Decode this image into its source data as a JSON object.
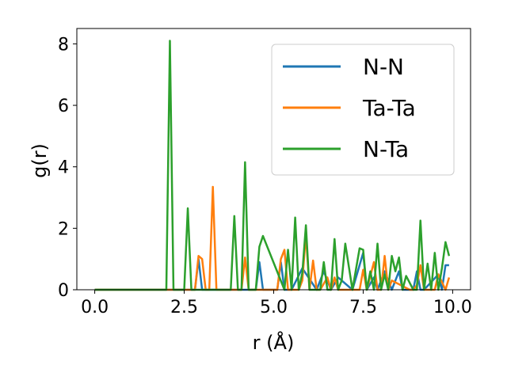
{
  "chart_data": {
    "type": "line",
    "xlabel": "r (Å)",
    "ylabel": "g(r)",
    "xlim": [
      -0.5,
      10.5
    ],
    "ylim": [
      0,
      8.5
    ],
    "xticks": [
      0.0,
      2.5,
      5.0,
      7.5,
      10.0
    ],
    "xtick_labels": [
      "0.0",
      "2.5",
      "5.0",
      "7.5",
      "10.0"
    ],
    "yticks": [
      0,
      2,
      4,
      6,
      8
    ],
    "ytick_labels": [
      "0",
      "2",
      "4",
      "6",
      "8"
    ],
    "grid": false,
    "legend_position": "top-right",
    "series": [
      {
        "name": "N-N",
        "color": "#1f77b4",
        "x": [
          0,
          2.0,
          2.8,
          2.9,
          3.0,
          4.0,
          4.1,
          4.5,
          4.6,
          4.7,
          5.1,
          5.2,
          5.3,
          5.5,
          5.8,
          6.2,
          6.4,
          6.6,
          6.8,
          7.2,
          7.4,
          7.5,
          7.6,
          7.8,
          7.9,
          8.1,
          8.3,
          8.5,
          8.6,
          8.9,
          9.0,
          9.1,
          9.2,
          9.6,
          9.7,
          9.8,
          9.9
        ],
        "y": [
          0,
          0,
          0,
          1.0,
          0,
          0,
          0,
          0,
          0.9,
          0,
          0,
          0.9,
          0,
          0,
          0.7,
          0,
          0.6,
          0,
          0.4,
          0,
          0.8,
          1.2,
          0,
          0.4,
          0,
          0.6,
          0,
          0.6,
          0,
          0,
          0.6,
          0,
          0,
          0.5,
          0,
          0.8,
          0.8
        ]
      },
      {
        "name": "Ta-Ta",
        "color": "#ff7f0e",
        "x": [
          0,
          2.6,
          2.7,
          2.8,
          2.9,
          3.0,
          3.1,
          3.2,
          3.3,
          3.4,
          4.0,
          4.1,
          4.2,
          4.3,
          5.0,
          5.1,
          5.2,
          5.3,
          5.4,
          5.7,
          5.8,
          5.9,
          6.0,
          6.1,
          6.2,
          6.3,
          6.5,
          6.6,
          6.7,
          6.8,
          7.4,
          7.5,
          7.6,
          7.8,
          7.9,
          8.0,
          8.1,
          8.2,
          8.3,
          8.8,
          8.9,
          9.0,
          9.1,
          9.2,
          9.5,
          9.6,
          9.8,
          9.9
        ],
        "y": [
          0,
          0,
          0,
          0,
          1.1,
          1.0,
          0,
          0,
          3.35,
          0,
          0,
          0,
          1.05,
          0,
          0,
          0,
          1.0,
          1.3,
          0,
          0,
          0.3,
          1.8,
          0,
          0.95,
          0,
          0,
          0.4,
          0,
          0.4,
          0,
          0,
          0.65,
          0,
          0.9,
          0,
          0,
          1.1,
          0,
          0.3,
          0,
          0,
          0.15,
          0.8,
          0,
          0,
          0.5,
          0,
          0.4
        ]
      },
      {
        "name": "N-Ta",
        "color": "#2ca02c",
        "x": [
          0,
          2.0,
          2.1,
          2.2,
          2.5,
          2.6,
          2.7,
          3.8,
          3.9,
          4.0,
          4.1,
          4.2,
          4.3,
          4.5,
          4.6,
          4.7,
          5.3,
          5.4,
          5.5,
          5.6,
          5.7,
          5.8,
          5.9,
          6.0,
          6.3,
          6.4,
          6.5,
          6.6,
          6.7,
          6.8,
          6.9,
          7.0,
          7.2,
          7.4,
          7.5,
          7.6,
          7.7,
          7.8,
          7.9,
          8.0,
          8.1,
          8.2,
          8.3,
          8.4,
          8.5,
          8.6,
          8.7,
          8.9,
          9.0,
          9.1,
          9.2,
          9.3,
          9.4,
          9.5,
          9.6,
          9.7,
          9.8,
          9.9
        ],
        "y": [
          0,
          0,
          8.1,
          0,
          0,
          2.65,
          0,
          0,
          2.4,
          0,
          0,
          4.15,
          0,
          0,
          1.4,
          1.75,
          0,
          1.3,
          0,
          2.35,
          0,
          0.55,
          2.1,
          0,
          0,
          0.9,
          0,
          0,
          1.65,
          0,
          0.3,
          1.5,
          0,
          1.35,
          1.3,
          0,
          0.6,
          0,
          1.5,
          0,
          0.5,
          0,
          1.1,
          0.6,
          1.05,
          0,
          0.45,
          0,
          0,
          2.25,
          0,
          0.85,
          0,
          1.2,
          0,
          0.7,
          1.55,
          1.1
        ]
      }
    ]
  }
}
